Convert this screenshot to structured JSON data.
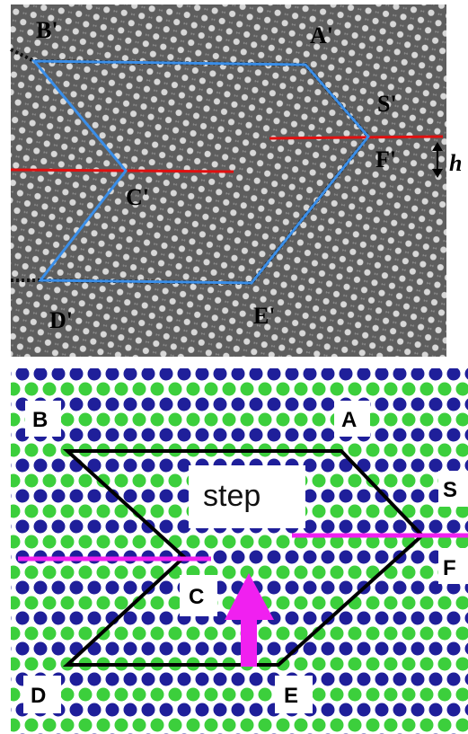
{
  "top_panel": {
    "labels": {
      "b": "B'",
      "a": "A'",
      "s": "S'",
      "f": "F'",
      "c": "C'",
      "d": "D'",
      "e": "E'"
    },
    "height_marker": "h"
  },
  "bottom_panel": {
    "labels": {
      "b": "B",
      "a": "A",
      "s": "S",
      "f": "F",
      "c": "C",
      "d": "D",
      "e": "E"
    },
    "step": "step"
  }
}
